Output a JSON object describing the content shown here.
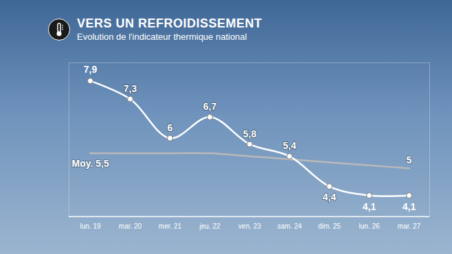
{
  "chart_data": {
    "type": "area",
    "title": "VERS UN REFROIDISSEMENT",
    "subtitle": "Evolution de l'indicateur thermique national",
    "categories": [
      "lun. 19",
      "mar. 20",
      "mer. 21",
      "jeu. 22",
      "ven. 23",
      "sam. 24",
      "dim. 25",
      "lun. 26",
      "mar. 27"
    ],
    "series": [
      {
        "values": [
          7.9,
          7.3,
          6,
          6.7,
          5.8,
          5.4,
          4.4,
          4.1,
          4.1
        ],
        "value_labels": [
          "7,9",
          "7,3",
          "6",
          "6,7",
          "5,8",
          "5,4",
          "4,4",
          "4,1",
          "4,1"
        ],
        "color": "#ffffff",
        "marker": "circle"
      },
      {
        "values": [
          5.5,
          5.5,
          5.5,
          5.5,
          5.4,
          5.3,
          5.2,
          5.1,
          5.0
        ],
        "value_labels": [
          "Moy. 5,5",
          null,
          null,
          null,
          null,
          null,
          null,
          null,
          "5"
        ],
        "color": "#b9b9b9"
      }
    ],
    "colors": [
      "#e36a6a",
      "#7f7fea"
    ],
    "ylim": [
      3.4,
      8.5
    ],
    "yticks": [],
    "data_labels": true,
    "tick_labels": "x",
    "grid": false
  }
}
